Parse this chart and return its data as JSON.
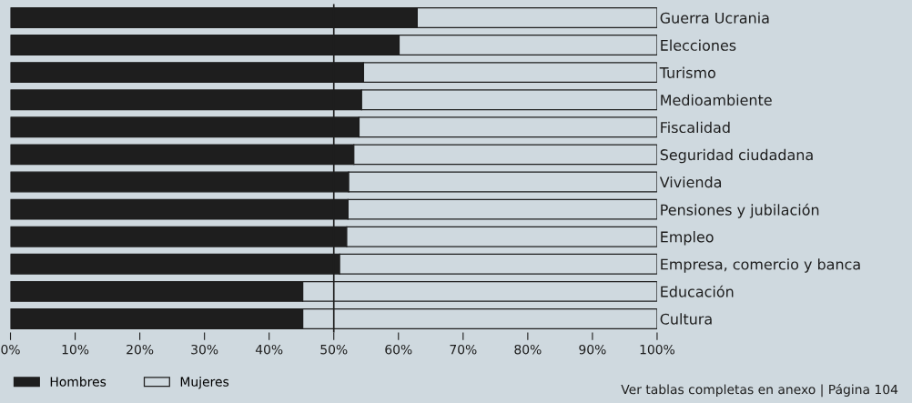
{
  "chart_data": {
    "type": "bar",
    "orientation": "horizontal",
    "stacked": true,
    "categories": [
      "Guerra Ucrania",
      "Elecciones",
      "Turismo",
      "Medioambiente",
      "Fiscalidad",
      "Seguridad ciudadana",
      "Vivienda",
      "Pensiones y jubilación",
      "Empleo",
      "Empresa, comercio y banca",
      "Educación",
      "Cultura"
    ],
    "series": [
      {
        "name": "Hombres",
        "color": "#1e1e1e",
        "values": [
          62.9,
          60.1,
          54.6,
          54.3,
          53.9,
          53.1,
          52.3,
          52.2,
          52.0,
          50.9,
          45.2,
          45.2
        ]
      },
      {
        "name": "Mujeres",
        "color": "#cfd9df",
        "values": [
          37.1,
          39.9,
          45.4,
          45.7,
          46.1,
          46.9,
          47.7,
          47.8,
          48.0,
          49.1,
          54.8,
          54.8
        ]
      }
    ],
    "xlim": [
      0,
      100
    ],
    "xticks": [
      {
        "value": 0,
        "label": "0%"
      },
      {
        "value": 10,
        "label": "10%"
      },
      {
        "value": 20,
        "label": "20%"
      },
      {
        "value": 30,
        "label": "30%"
      },
      {
        "value": 40,
        "label": "40%"
      },
      {
        "value": 50,
        "label": "50%"
      },
      {
        "value": 60,
        "label": "60%"
      },
      {
        "value": 70,
        "label": "70%"
      },
      {
        "value": 80,
        "label": "80%"
      },
      {
        "value": 90,
        "label": "90%"
      },
      {
        "value": 100,
        "label": "100%"
      }
    ],
    "ref_lines": [
      {
        "axis": "x",
        "value": 50,
        "label": null,
        "color": "#1e1e1e"
      }
    ],
    "legend": "bottom left",
    "grid": false,
    "annotations": [
      "Ver tablas completas en anexo | Página 104"
    ]
  }
}
